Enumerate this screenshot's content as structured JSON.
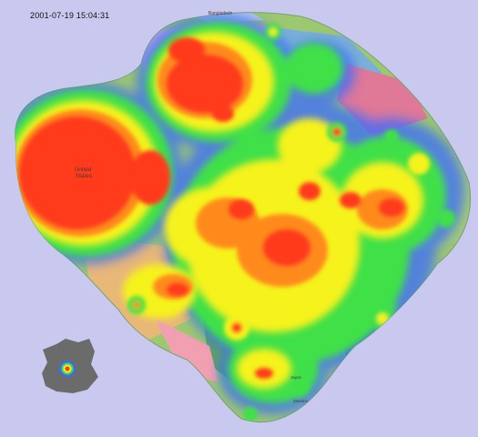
{
  "timestamp": "2001-07-19 15:04:31",
  "map": {
    "country_labels": [
      {
        "key": "us",
        "text": "United\nStates"
      },
      {
        "key": "bangladesh",
        "text": "Bangladesh"
      },
      {
        "key": "japan",
        "text": "Japan"
      },
      {
        "key": "sweden",
        "text": "Sweden"
      }
    ],
    "colors": {
      "background": "#c9c9f0",
      "heat_red": "#ff3b1f",
      "heat_orange": "#ff8a1a",
      "heat_yellow": "#f6f21b",
      "heat_green": "#3fe04a",
      "heat_blue": "#3a6bff"
    }
  },
  "inset": {
    "icon": "grey-region-with-hotspot"
  }
}
